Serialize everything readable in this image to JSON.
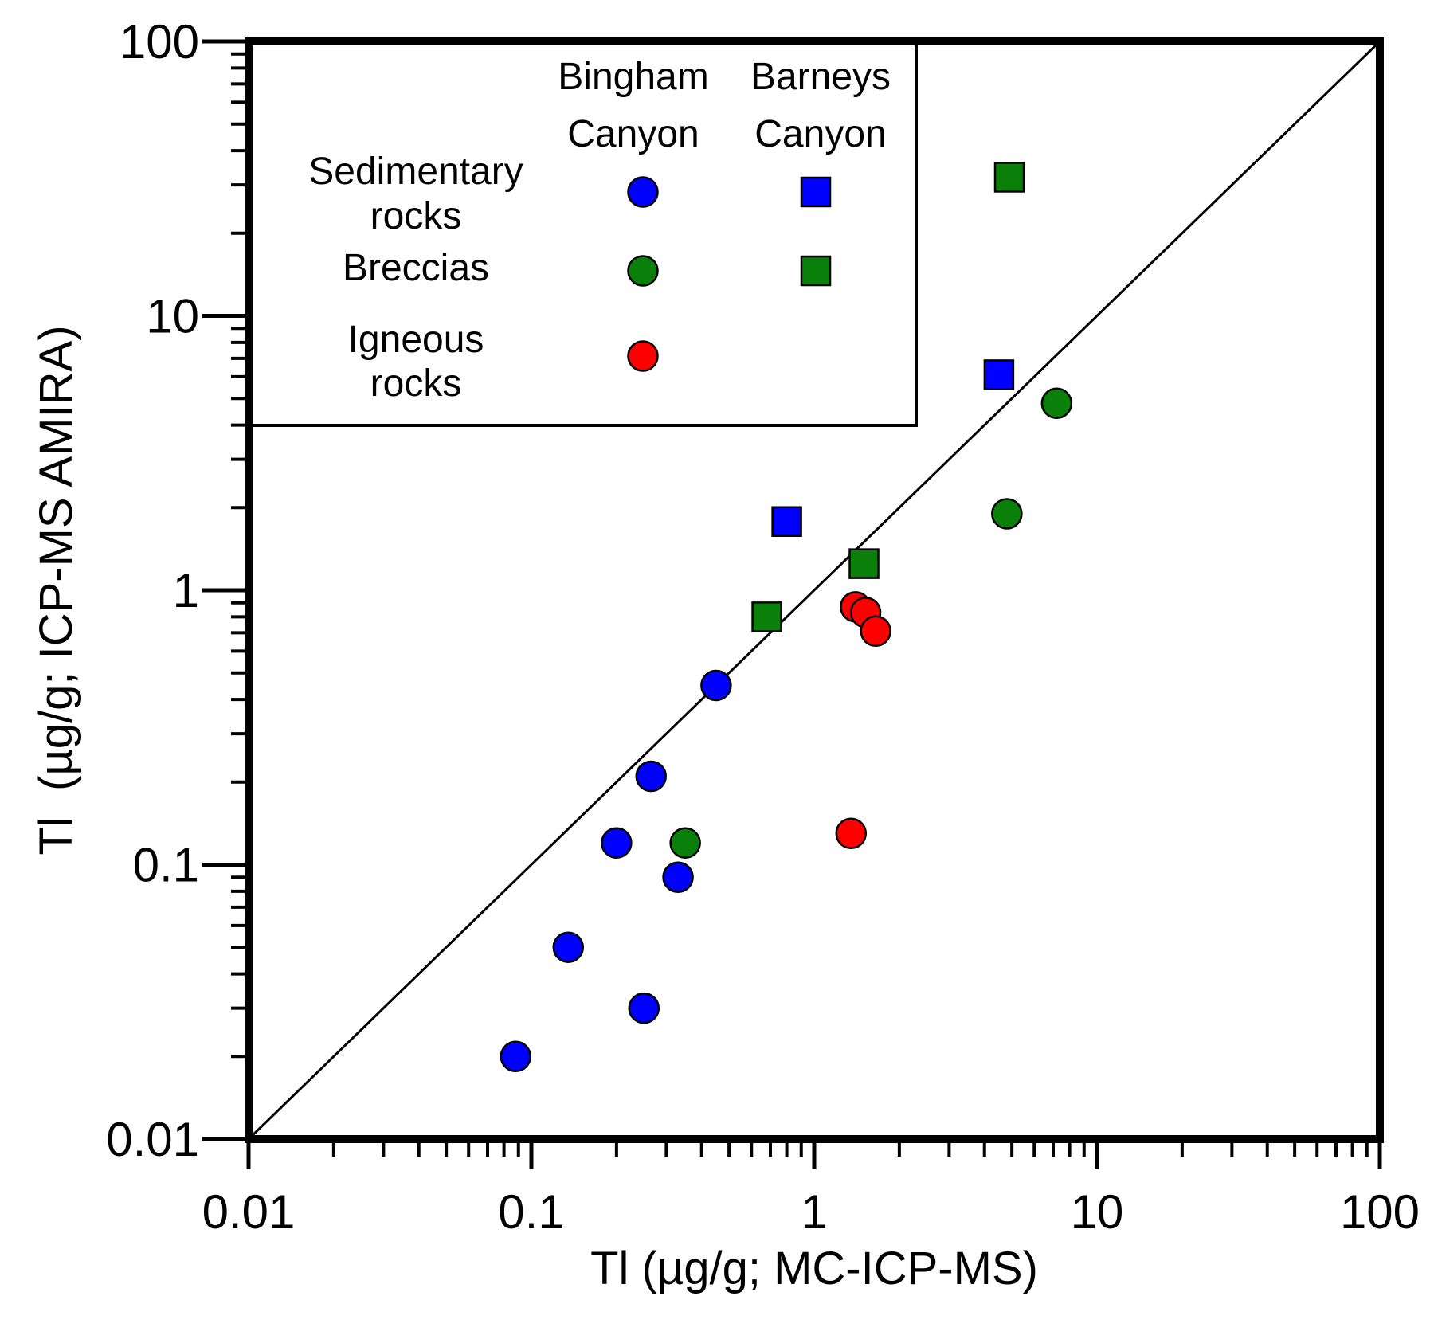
{
  "chart_data": {
    "type": "scatter",
    "xscale": "log",
    "yscale": "log",
    "xlim": [
      0.01,
      100
    ],
    "ylim": [
      0.01,
      100
    ],
    "xticks": [
      "0.01",
      "0.1",
      "1",
      "10",
      "100"
    ],
    "yticks": [
      "0.01",
      "0.1",
      "1",
      "10",
      "100"
    ],
    "xlabel": "Tl (µg/g; MC-ICP-MS)",
    "ylabel": "Tl  (µg/g; ICP-MS AMIRA)",
    "reference_line": "1:1",
    "legend": {
      "position": "top-left",
      "column_headers": [
        [
          "Bingham",
          "Canyon"
        ],
        [
          "Barneys",
          "Canyon"
        ]
      ],
      "row_labels": [
        [
          "Sedimentary",
          "rocks"
        ],
        [
          "Breccias"
        ],
        [
          "Igneous",
          "rocks"
        ]
      ]
    },
    "series": [
      {
        "name": "Sedimentary rocks – Bingham Canyon",
        "marker": "circle",
        "color": "#0000ff",
        "points": [
          [
            0.088,
            0.02
          ],
          [
            0.135,
            0.05
          ],
          [
            0.25,
            0.03
          ],
          [
            0.2,
            0.12
          ],
          [
            0.265,
            0.21
          ],
          [
            0.33,
            0.09
          ],
          [
            0.45,
            0.45
          ]
        ]
      },
      {
        "name": "Sedimentary rocks – Barneys Canyon",
        "marker": "square",
        "color": "#0000ff",
        "points": [
          [
            0.8,
            1.78
          ],
          [
            4.5,
            6.1
          ]
        ]
      },
      {
        "name": "Breccias – Bingham Canyon",
        "marker": "circle",
        "color": "#0a800a",
        "points": [
          [
            0.35,
            0.12
          ],
          [
            4.8,
            1.9
          ],
          [
            7.2,
            4.8
          ]
        ]
      },
      {
        "name": "Breccias – Barneys Canyon",
        "marker": "square",
        "color": "#0a800a",
        "points": [
          [
            0.68,
            0.8
          ],
          [
            1.5,
            1.25
          ],
          [
            4.9,
            32
          ]
        ]
      },
      {
        "name": "Igneous rocks – Bingham Canyon",
        "marker": "circle",
        "color": "#ff0000",
        "points": [
          [
            1.35,
            0.13
          ],
          [
            1.4,
            0.87
          ],
          [
            1.52,
            0.83
          ],
          [
            1.65,
            0.71
          ]
        ]
      }
    ]
  }
}
